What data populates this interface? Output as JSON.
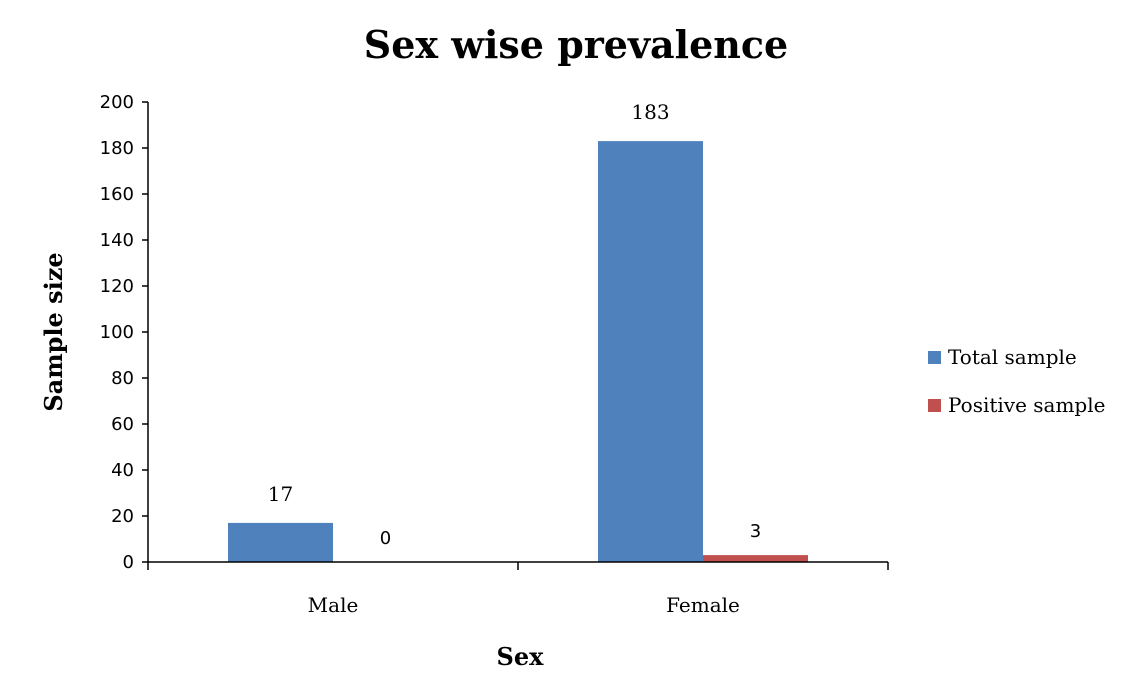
{
  "chart_data": {
    "type": "bar",
    "title": "Sex wise prevalence",
    "xlabel": "Sex",
    "ylabel": "Sample size",
    "categories": [
      "Male",
      "Female"
    ],
    "series": [
      {
        "name": "Total sample",
        "values": [
          17,
          183
        ],
        "color": "#4F81BD"
      },
      {
        "name": "Positive sample",
        "values": [
          0,
          3
        ],
        "color": "#C0504D"
      }
    ],
    "ylim": [
      0,
      200
    ],
    "yticks": [
      0,
      20,
      40,
      60,
      80,
      100,
      120,
      140,
      160,
      180,
      200
    ],
    "data_labels": [
      [
        "17",
        "183"
      ],
      [
        "0",
        "3"
      ]
    ],
    "grid": false,
    "legend_position": "right"
  }
}
